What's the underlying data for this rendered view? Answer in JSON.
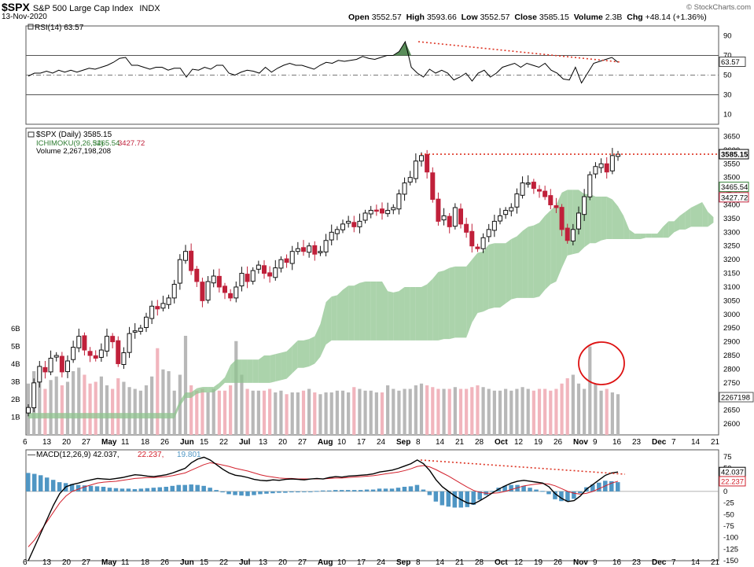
{
  "header": {
    "symbol": "$SPX",
    "name": "S&P 500 Large Cap Index",
    "exchange": "INDX",
    "date": "13-Nov-2020",
    "open_label": "Open",
    "open": "3552.57",
    "high_label": "High",
    "high": "3593.66",
    "low_label": "Low",
    "low": "3552.57",
    "close_label": "Close",
    "close": "3585.15",
    "volume_label": "Volume",
    "volume": "2.3B",
    "chg_label": "Chg",
    "chg": "+48.14 (+1.36%)",
    "brand": "© StockCharts.com"
  },
  "colors": {
    "up": "#111111",
    "down": "#c0203a",
    "cloud_bull": "#8fc48f",
    "cloud_bear": "#f0a8ae",
    "vol_up": "#b8b8b8",
    "vol_down": "#f1b5bd",
    "rsi_fill": "#3d7a3d",
    "macd_hist": "#4f96c4",
    "signal": "#d2202c",
    "trend": "#dd3322",
    "circle": "#dd1111"
  },
  "chart_data": {
    "type": "candlestick",
    "rsi_panel": {
      "label": "RSI(14)",
      "value": "63.57",
      "ticks": [
        "90",
        "70",
        "50",
        "30",
        "10"
      ],
      "value_tag": "63.57",
      "levels": [
        70,
        50,
        30
      ],
      "values": [
        49,
        52,
        52,
        54,
        52,
        55,
        53,
        55,
        53,
        55,
        57,
        56,
        58,
        60,
        63,
        67,
        68,
        60,
        60,
        58,
        56,
        58,
        58,
        55,
        57,
        57,
        48,
        56,
        55,
        58,
        56,
        60,
        60,
        52,
        50,
        53,
        55,
        54,
        52,
        58,
        53,
        57,
        60,
        62,
        60,
        60,
        58,
        56,
        60,
        63,
        62,
        65,
        64,
        65,
        66,
        69,
        67,
        66,
        68,
        70,
        70,
        74,
        84,
        58,
        52,
        48,
        56,
        52,
        55,
        52,
        45,
        48,
        52,
        44,
        52,
        55,
        48,
        52,
        58,
        60,
        62,
        58,
        62,
        60,
        58,
        62,
        55,
        52,
        46,
        45,
        58,
        42,
        52,
        62,
        64,
        66,
        68,
        63
      ]
    },
    "price_panel": {
      "legend_title": "$SPX (Daily) 3585.15",
      "legend_ichimoku": "ICHIMOKU(9,26,52)",
      "legend_ichimoku_v1": "3465.54",
      "legend_ichimoku_v2": "3427.72",
      "legend_volume": "Volume 2,267,198,208",
      "ylim": [
        2560,
        3680
      ],
      "ticks": [
        "3650",
        "3600",
        "3550",
        "3500",
        "3450",
        "3400",
        "3350",
        "3300",
        "3250",
        "3200",
        "3150",
        "3100",
        "3050",
        "3000",
        "2950",
        "2900",
        "2850",
        "2800",
        "2750",
        "2700",
        "2650",
        "2600"
      ],
      "tags": [
        "3585.15",
        "3465.54",
        "3427.72",
        "2267198"
      ],
      "vol_ticks": [
        "6B",
        "5B",
        "4B",
        "3B",
        "2B",
        "1B"
      ],
      "closes": [
        2660,
        2750,
        2810,
        2790,
        2840,
        2850,
        2790,
        2830,
        2880,
        2920,
        2870,
        2850,
        2840,
        2870,
        2920,
        2900,
        2820,
        2860,
        2930,
        2940,
        2950,
        2990,
        3030,
        3020,
        3040,
        3060,
        3110,
        3200,
        3230,
        3160,
        3120,
        3050,
        3120,
        3140,
        3100,
        3080,
        3060,
        3100,
        3150,
        3120,
        3160,
        3180,
        3150,
        3140,
        3170,
        3200,
        3190,
        3230,
        3240,
        3230,
        3250,
        3220,
        3230,
        3270,
        3300,
        3310,
        3330,
        3340,
        3320,
        3340,
        3370,
        3380,
        3380,
        3370,
        3380,
        3390,
        3440,
        3480,
        3500,
        3560,
        3580,
        3520,
        3420,
        3340,
        3360,
        3320,
        3390,
        3330,
        3300,
        3250,
        3240,
        3280,
        3310,
        3340,
        3360,
        3380,
        3390,
        3440,
        3480,
        3480,
        3460,
        3450,
        3430,
        3400,
        3390,
        3310,
        3270,
        3310,
        3370,
        3430,
        3510,
        3540,
        3550,
        3520,
        3580,
        3585
      ],
      "volumes": [
        2.9,
        3.6,
        3.2,
        2.6,
        3.1,
        3.3,
        2.8,
        3.0,
        3.6,
        3.8,
        3.4,
        2.9,
        3.0,
        3.3,
        2.8,
        2.6,
        3.2,
        3.0,
        2.7,
        2.6,
        2.5,
        2.8,
        3.3,
        4.9,
        3.7,
        3.6,
        2.5,
        3.4,
        5.6,
        2.8,
        2.5,
        2.6,
        2.4,
        2.6,
        2.5,
        2.5,
        2.8,
        5.3,
        3.4,
        2.6,
        2.5,
        2.5,
        2.5,
        2.6,
        2.4,
        2.5,
        2.3,
        2.4,
        2.4,
        2.5,
        2.6,
        2.4,
        2.3,
        2.4,
        2.4,
        2.5,
        2.5,
        2.4,
        2.7,
        2.6,
        2.5,
        2.5,
        2.4,
        2.4,
        2.8,
        2.6,
        2.5,
        2.6,
        2.6,
        2.8,
        2.9,
        2.8,
        2.7,
        2.6,
        2.6,
        2.6,
        2.7,
        2.6,
        2.6,
        2.7,
        2.8,
        2.7,
        2.6,
        2.5,
        2.5,
        2.6,
        2.5,
        2.6,
        2.7,
        2.6,
        2.5,
        2.6,
        2.6,
        2.5,
        2.6,
        2.9,
        3.2,
        3.4,
        2.9,
        2.6,
        5.0,
        2.9,
        2.5,
        2.6,
        2.4,
        2.3
      ],
      "target_line": 3585
    },
    "macd_panel": {
      "label": "MACD(12,26,9)",
      "macd": "42.037",
      "signal": "22.237",
      "histogram": "19.801",
      "ylim": [
        -150,
        90
      ],
      "ticks": [
        "75",
        "50",
        "25",
        "0",
        "-25",
        "-50",
        "-75",
        "-100",
        "-125",
        "-150"
      ],
      "tags": [
        "42.037",
        "22.237"
      ],
      "macd_values": [
        -150,
        -120,
        -90,
        -60,
        -30,
        -5,
        10,
        15,
        18,
        22,
        25,
        28,
        27,
        26,
        28,
        30,
        33,
        36,
        35,
        33,
        32,
        34,
        36,
        40,
        45,
        50,
        62,
        70,
        74,
        68,
        58,
        48,
        40,
        35,
        33,
        30,
        26,
        24,
        23,
        25,
        24,
        26,
        27,
        26,
        25,
        27,
        28,
        27,
        30,
        32,
        31,
        33,
        34,
        35,
        36,
        38,
        42,
        44,
        46,
        50,
        55,
        60,
        68,
        60,
        45,
        25,
        10,
        0,
        -10,
        -18,
        -25,
        -27,
        -20,
        -12,
        -3,
        5,
        12,
        18,
        22,
        24,
        22,
        20,
        18,
        10,
        -5,
        -15,
        -22,
        -20,
        -10,
        5,
        15,
        25,
        35,
        40,
        42
      ],
      "signal_values": [
        -120,
        -105,
        -85,
        -65,
        -45,
        -25,
        -10,
        0,
        5,
        10,
        14,
        18,
        20,
        21,
        22,
        24,
        26,
        28,
        29,
        30,
        30,
        31,
        32,
        34,
        37,
        40,
        46,
        52,
        58,
        62,
        60,
        57,
        54,
        50,
        47,
        44,
        40,
        36,
        33,
        31,
        29,
        28,
        28,
        27,
        27,
        27,
        27,
        27,
        28,
        29,
        29,
        30,
        31,
        32,
        33,
        34,
        36,
        38,
        40,
        42,
        45,
        49,
        54,
        56,
        53,
        47,
        40,
        33,
        25,
        17,
        9,
        2,
        -2,
        -4,
        -4,
        -3,
        0,
        4,
        8,
        12,
        14,
        16,
        17,
        16,
        12,
        6,
        0,
        -4,
        -6,
        -4,
        0,
        6,
        12,
        18,
        22
      ],
      "histogram_values": [
        40,
        38,
        35,
        30,
        25,
        20,
        18,
        16,
        14,
        13,
        12,
        11,
        10,
        8,
        7,
        6,
        6,
        5,
        6,
        7,
        8,
        9,
        10,
        12,
        14,
        14,
        15,
        14,
        12,
        8,
        3,
        -2,
        -6,
        -8,
        -9,
        -10,
        -8,
        -6,
        -5,
        -4,
        -3,
        -3,
        -2,
        -2,
        -1,
        0,
        1,
        2,
        2,
        3,
        3,
        3,
        3,
        3,
        4,
        4,
        6,
        6,
        6,
        8,
        10,
        11,
        14,
        4,
        -8,
        -22,
        -30,
        -33,
        -35,
        -35,
        -34,
        -29,
        -18,
        -8,
        1,
        8,
        12,
        14,
        14,
        12,
        8,
        4,
        1,
        -6,
        -17,
        -21,
        -22,
        -16,
        -4,
        9,
        15,
        19,
        23,
        22,
        20
      ],
      "trend_label": ""
    },
    "x_axis": {
      "labels": [
        "6",
        "13",
        "20",
        "27",
        "May",
        "11",
        "18",
        "26",
        "Jun",
        "15",
        "22",
        "Jul",
        "13",
        "20",
        "27",
        "Aug",
        "10",
        "17",
        "24",
        "Sep",
        "8",
        "14",
        "21",
        "28",
        "Oct",
        "12",
        "19",
        "26",
        "Nov",
        "9",
        "16",
        "23",
        "Dec",
        "7",
        "14",
        "21"
      ],
      "bold": [
        "May",
        "Jun",
        "Jul",
        "Aug",
        "Sep",
        "Oct",
        "Nov",
        "Dec"
      ]
    }
  }
}
